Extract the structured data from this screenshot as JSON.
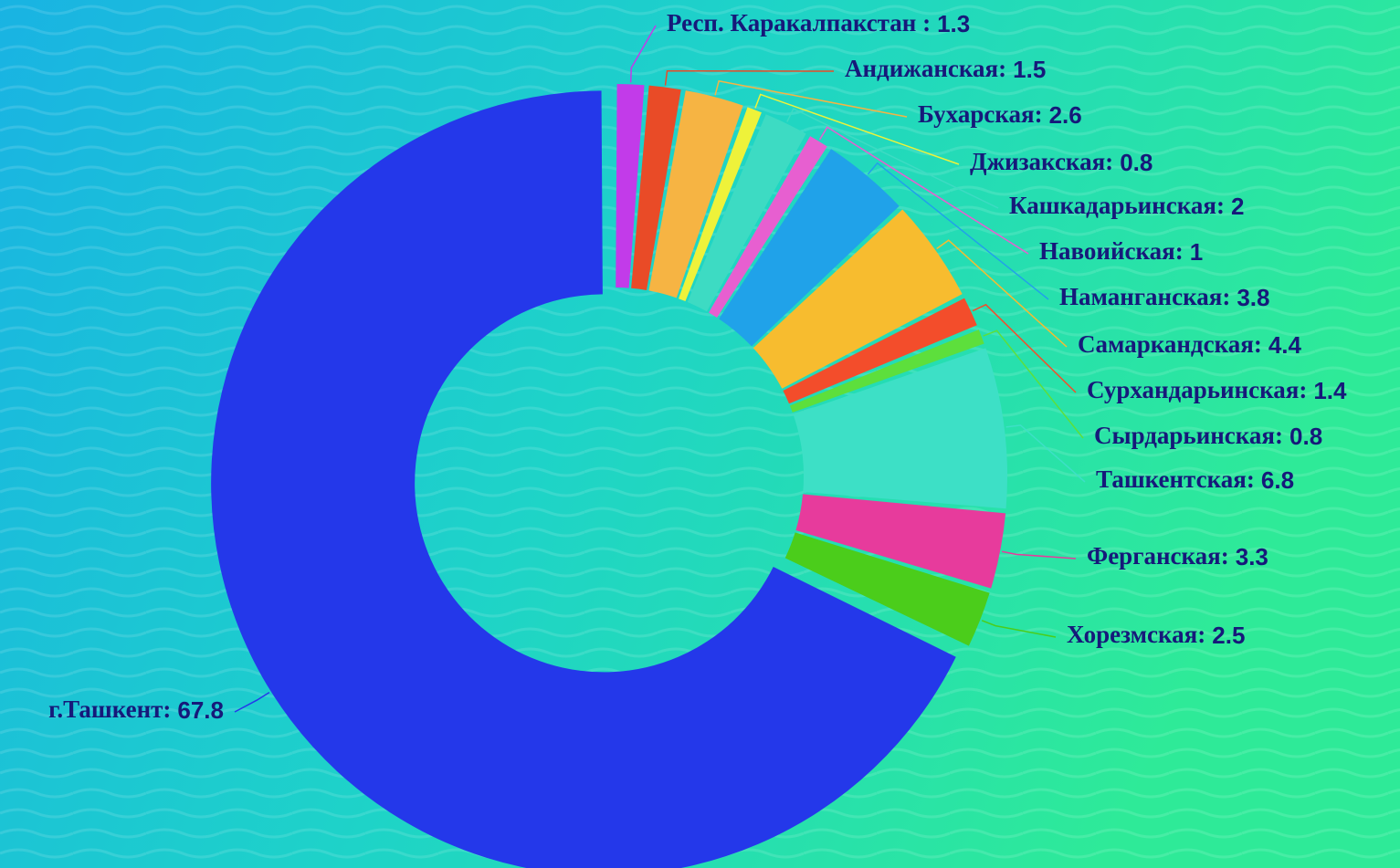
{
  "chart_data": {
    "type": "donut",
    "categories": [
      "Респ. Каракалпакстан :",
      "Андижанская:",
      "Бухарская:",
      "Джизакская:",
      "Кашкадарьинская:",
      "Навоийская:",
      "Наманганская:",
      "Самаркандская:",
      "Сурхандарьинская:",
      "Сырдарьинская:",
      "Ташкентская:",
      "Ферганская:",
      "Хорезмская:",
      "г.Ташкент:"
    ],
    "values": [
      1.3,
      1.5,
      2.6,
      0.8,
      2,
      1,
      3.8,
      4.4,
      1.4,
      0.8,
      6.8,
      3.3,
      2.5,
      67.8
    ],
    "colors": [
      "#c23be9",
      "#e94b27",
      "#f6b443",
      "#eef23a",
      "#3ddbc3",
      "#e75fd0",
      "#20a2e9",
      "#f7bc2f",
      "#f34d2b",
      "#5ddf3c",
      "#3de0c6",
      "#e73b9c",
      "#4bcd1b",
      "#2438ea"
    ]
  }
}
